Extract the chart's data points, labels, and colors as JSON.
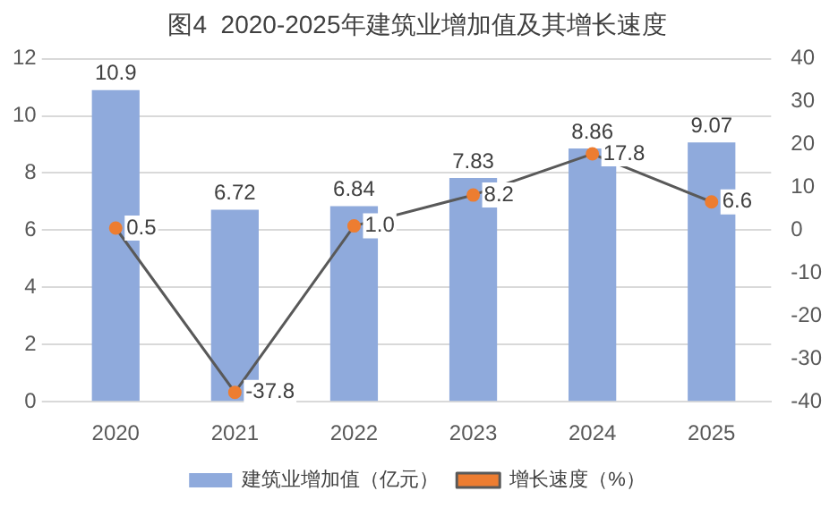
{
  "chart_data": {
    "type": "bar",
    "title": "图4  2020-2025年建筑业增加值及其增长速度",
    "categories": [
      "2020",
      "2021",
      "2022",
      "2023",
      "2024",
      "2025"
    ],
    "series": [
      {
        "name": "建筑业增加值（亿元）",
        "color": "#8faadc",
        "values": [
          10.9,
          6.72,
          6.84,
          7.83,
          8.86,
          9.07
        ],
        "value_labels": [
          "10.9",
          "6.72",
          "6.84",
          "7.83",
          "8.86",
          "9.07"
        ]
      },
      {
        "name": "增长速度（%）",
        "type": "line",
        "axis": "y2",
        "color": "#ed7d31",
        "values": [
          0.5,
          -37.8,
          1.0,
          8.2,
          17.8,
          6.6
        ],
        "value_labels": [
          "0.5",
          "-37.8",
          "1.0",
          "8.2",
          "17.8",
          "6.6"
        ]
      }
    ],
    "ylim": [
      0,
      12
    ],
    "yticks": [
      0,
      2,
      4,
      6,
      8,
      10,
      12
    ],
    "y2lim": [
      -40,
      40
    ],
    "y2ticks": [
      -40,
      -30,
      -20,
      -10,
      0,
      10,
      20,
      30,
      40
    ],
    "grid": "y",
    "legend": "bottom",
    "marker": "circle",
    "line_style": "solid"
  }
}
